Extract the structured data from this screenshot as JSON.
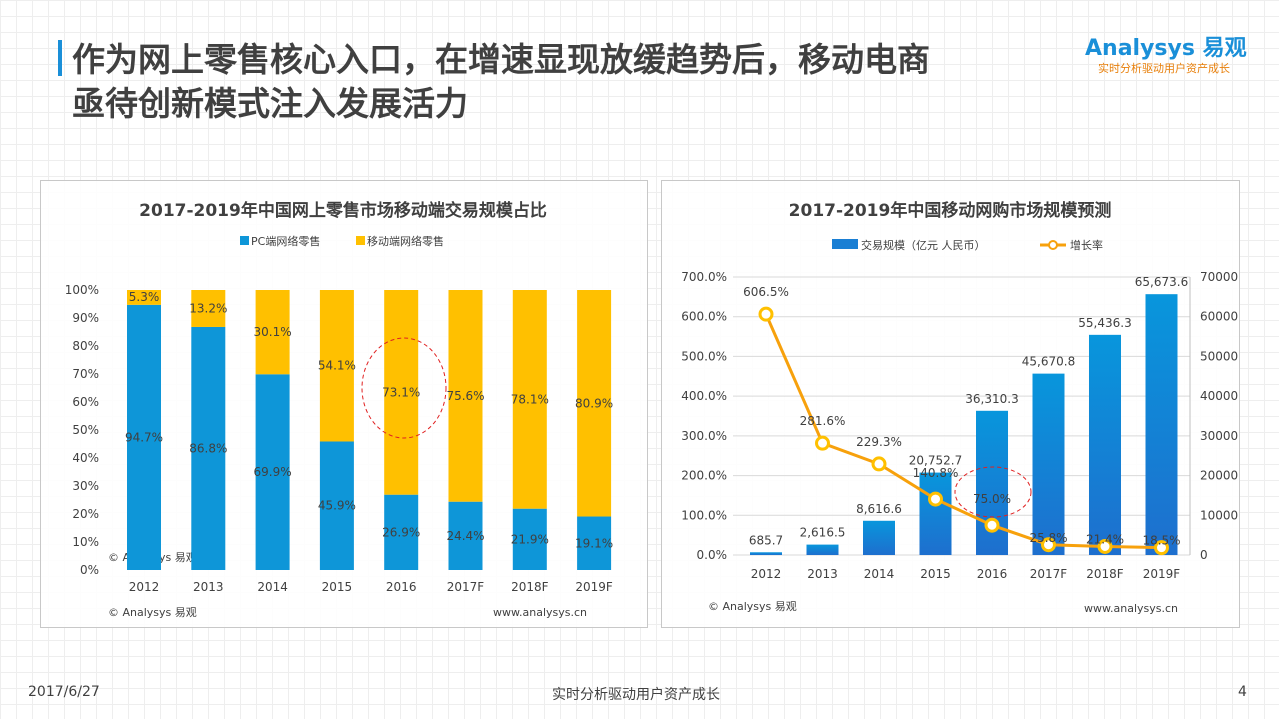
{
  "header": {
    "title_line1": "作为网上零售核心入口，在增速显现放缓趋势后，移动电商",
    "title_line2": "亟待创新模式注入发展活力",
    "logo": "Analysys 易观",
    "logo_tagline": "实时分析驱动用户资产成长"
  },
  "footer": {
    "date": "2017/6/27",
    "slogan": "实时分析驱动用户资产成长",
    "page": "4"
  },
  "chart_data": [
    {
      "type": "bar",
      "stacked": true,
      "title": "2017-2019年中国网上零售市场移动端交易规模占比",
      "categories": [
        "2012",
        "2013",
        "2014",
        "2015",
        "2016",
        "2017F",
        "2018F",
        "2019F"
      ],
      "series": [
        {
          "name": "PC端网络零售",
          "color": "#0e96d8",
          "values": [
            94.7,
            86.8,
            69.9,
            45.9,
            26.9,
            24.4,
            21.9,
            19.1
          ]
        },
        {
          "name": "移动端网络零售",
          "color": "#ffc000",
          "values": [
            5.3,
            13.2,
            30.1,
            54.1,
            73.1,
            75.6,
            78.1,
            80.9
          ]
        }
      ],
      "y_ticks": [
        "0%",
        "10%",
        "20%",
        "30%",
        "40%",
        "50%",
        "60%",
        "70%",
        "80%",
        "90%",
        "100%"
      ],
      "ylim": [
        0,
        100
      ],
      "legend": "top",
      "source": "© Analysys 易观",
      "website": "www.analysys.cn",
      "highlight": "2016"
    },
    {
      "type": "bar+line",
      "title": "2017-2019年中国移动网购市场规模预测",
      "categories": [
        "2012",
        "2013",
        "2014",
        "2015",
        "2016",
        "2017F",
        "2018F",
        "2019F"
      ],
      "series": [
        {
          "name": "交易规模（亿元 人民币）",
          "color": "#1a7fd4",
          "axis": "right",
          "values": [
            685.7,
            2616.5,
            8616.6,
            20752.7,
            36310.3,
            45670.8,
            55436.3,
            65673.6
          ],
          "labels": [
            "685.7",
            "2,616.5",
            "8,616.6",
            "20,752.7",
            "36,310.3",
            "45,670.8",
            "55,436.3",
            "65,673.6"
          ]
        },
        {
          "name": "增长率",
          "color": "#f7a10c",
          "axis": "left",
          "values": [
            606.5,
            281.6,
            229.3,
            140.8,
            75.0,
            25.8,
            21.4,
            18.5
          ],
          "labels": [
            "606.5%",
            "281.6%",
            "229.3%",
            "140.8%",
            "75.0%",
            "25.8%",
            "21.4%",
            "18.5%"
          ]
        }
      ],
      "y_left_ticks": [
        "0.0%",
        "100.0%",
        "200.0%",
        "300.0%",
        "400.0%",
        "500.0%",
        "600.0%",
        "700.0%"
      ],
      "y_left_lim": [
        0,
        700
      ],
      "y_right_ticks": [
        "0",
        "10000",
        "20000",
        "30000",
        "40000",
        "50000",
        "60000",
        "70000"
      ],
      "y_right_lim": [
        0,
        70000
      ],
      "legend": "top",
      "source": "© Analysys 易观",
      "website": "www.analysys.cn",
      "highlight": "2016"
    }
  ]
}
